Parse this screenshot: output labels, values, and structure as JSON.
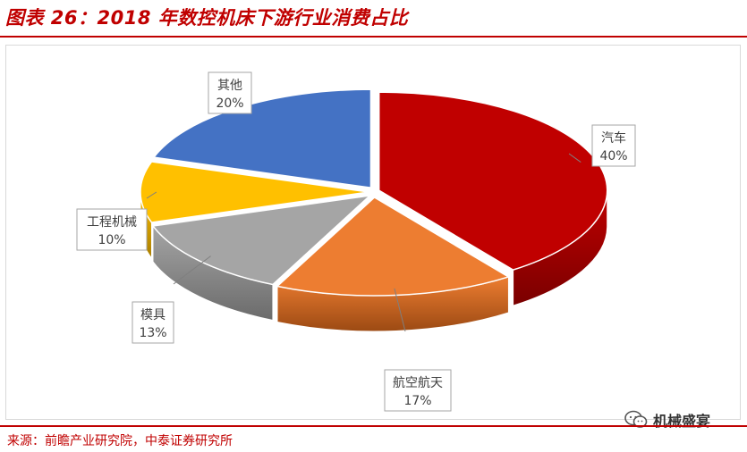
{
  "header": {
    "title": "图表 26：2018 年数控机床下游行业消费占比"
  },
  "footer": {
    "source": "来源：前瞻产业研究院，中泰证券研究所",
    "watermark": "机械盛宴",
    "watermark_icon": "wechat-icon"
  },
  "colors": {
    "accent": "#c00000"
  },
  "chart_data": {
    "type": "pie",
    "style": "3d-exploded",
    "title": "",
    "slices": [
      {
        "label": "汽车",
        "value": 40,
        "value_label": "40%",
        "color": "#c00000",
        "side_color": "#7a0000"
      },
      {
        "label": "航空航天",
        "value": 17,
        "value_label": "17%",
        "color": "#ed7d31",
        "side_color": "#9c4a13"
      },
      {
        "label": "模具",
        "value": 13,
        "value_label": "13%",
        "color": "#a5a5a5",
        "side_color": "#6b6b6b"
      },
      {
        "label": "工程机械",
        "value": 10,
        "value_label": "10%",
        "color": "#ffc000",
        "side_color": "#a87d00"
      },
      {
        "label": "其他",
        "value": 20,
        "value_label": "20%",
        "color": "#4472c4",
        "side_color": "#2a4a85"
      }
    ]
  }
}
